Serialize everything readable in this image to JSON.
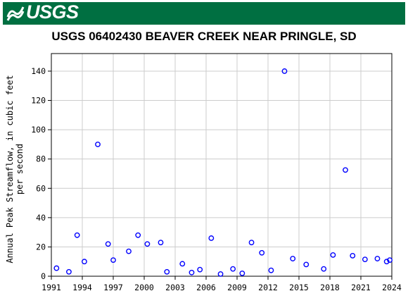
{
  "header": {
    "logo_text": "USGS",
    "brand_color": "#006f41"
  },
  "chart_data": {
    "type": "scatter",
    "title": "USGS 06402430 BEAVER CREEK NEAR PRINGLE, SD",
    "xlabel": "",
    "ylabel": "Annual Peak Streamflow, in cubic feet per second",
    "ylabel_lines": [
      "Annual Peak Streamflow, in cubic feet",
      "per second"
    ],
    "xlim": [
      1991,
      2024
    ],
    "ylim": [
      0,
      152
    ],
    "xticks": [
      1991,
      1994,
      1997,
      2000,
      2003,
      2006,
      2009,
      2012,
      2015,
      2018,
      2021,
      2024
    ],
    "yticks": [
      0,
      20,
      40,
      60,
      80,
      100,
      120,
      140
    ],
    "grid": true,
    "marker_color": "#0000ff",
    "marker": "open-circle",
    "points": [
      {
        "x": 1991.5,
        "y": 5.5
      },
      {
        "x": 1992.7,
        "y": 3
      },
      {
        "x": 1993.5,
        "y": 28
      },
      {
        "x": 1994.2,
        "y": 10
      },
      {
        "x": 1995.5,
        "y": 90
      },
      {
        "x": 1996.5,
        "y": 22
      },
      {
        "x": 1997.0,
        "y": 11
      },
      {
        "x": 1998.5,
        "y": 17
      },
      {
        "x": 1999.4,
        "y": 28
      },
      {
        "x": 2000.3,
        "y": 22
      },
      {
        "x": 2001.6,
        "y": 23
      },
      {
        "x": 2002.2,
        "y": 3
      },
      {
        "x": 2003.7,
        "y": 8.5
      },
      {
        "x": 2004.6,
        "y": 2.5
      },
      {
        "x": 2005.4,
        "y": 4.5
      },
      {
        "x": 2006.5,
        "y": 26
      },
      {
        "x": 2007.4,
        "y": 1.5
      },
      {
        "x": 2008.6,
        "y": 5
      },
      {
        "x": 2009.5,
        "y": 2
      },
      {
        "x": 2010.4,
        "y": 23
      },
      {
        "x": 2011.4,
        "y": 16
      },
      {
        "x": 2012.3,
        "y": 4
      },
      {
        "x": 2013.6,
        "y": 140
      },
      {
        "x": 2014.4,
        "y": 12
      },
      {
        "x": 2015.7,
        "y": 8
      },
      {
        "x": 2017.4,
        "y": 5
      },
      {
        "x": 2018.3,
        "y": 14.5
      },
      {
        "x": 2019.5,
        "y": 72.5
      },
      {
        "x": 2020.2,
        "y": 14
      },
      {
        "x": 2021.4,
        "y": 11.5
      },
      {
        "x": 2022.6,
        "y": 12
      },
      {
        "x": 2023.5,
        "y": 10
      },
      {
        "x": 2023.8,
        "y": 11
      }
    ]
  }
}
